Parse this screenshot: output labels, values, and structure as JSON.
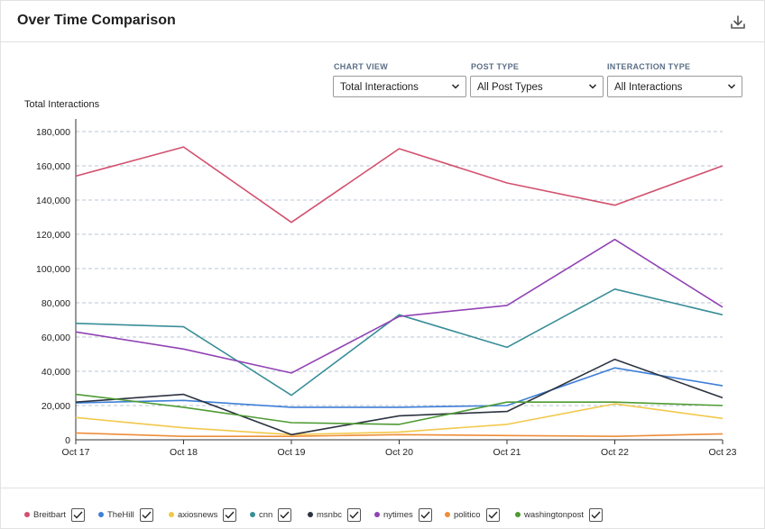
{
  "header": {
    "title": "Over Time Comparison",
    "download_icon": "download-icon"
  },
  "controls": [
    {
      "label": "CHART VIEW",
      "value": "Total Interactions"
    },
    {
      "label": "POST TYPE",
      "value": "All Post Types"
    },
    {
      "label": "INTERACTION TYPE",
      "value": "All Interactions"
    }
  ],
  "chart_data": {
    "type": "line",
    "title": "",
    "xlabel": "",
    "ylabel": "Total Interactions",
    "ylim": [
      0,
      180000
    ],
    "yticks": [
      0,
      20000,
      40000,
      60000,
      80000,
      100000,
      120000,
      140000,
      160000,
      180000
    ],
    "ytick_labels": [
      "0",
      "20,000",
      "40,000",
      "60,000",
      "80,000",
      "100,000",
      "120,000",
      "140,000",
      "160,000",
      "180,000"
    ],
    "categories": [
      "Oct 17",
      "Oct 18",
      "Oct 19",
      "Oct 20",
      "Oct 21",
      "Oct 22",
      "Oct 23"
    ],
    "grid": "horizontal-dashed",
    "legend_position": "bottom",
    "series": [
      {
        "name": "Breitbart",
        "color": "#d2506e",
        "values": [
          154000,
          171000,
          127000,
          170000,
          150000,
          137000,
          160000
        ]
      },
      {
        "name": "TheHill",
        "color": "#3f7fd8",
        "values": [
          21500,
          23000,
          19000,
          19000,
          20000,
          42000,
          31500
        ]
      },
      {
        "name": "axiosnews",
        "color": "#f2c84b",
        "values": [
          13000,
          7000,
          3000,
          4500,
          9000,
          21000,
          12500
        ]
      },
      {
        "name": "cnn",
        "color": "#3a8e98",
        "values": [
          68000,
          66000,
          26000,
          73000,
          54000,
          88000,
          73000
        ]
      },
      {
        "name": "msnbc",
        "color": "#2c3340",
        "values": [
          22000,
          26500,
          3000,
          14000,
          16500,
          47000,
          24500
        ]
      },
      {
        "name": "nytimes",
        "color": "#9143b4",
        "values": [
          63000,
          53000,
          39000,
          72000,
          78500,
          117000,
          77500
        ]
      },
      {
        "name": "politico",
        "color": "#ee8d3a",
        "values": [
          4000,
          2000,
          2000,
          3000,
          2500,
          2000,
          3500
        ]
      },
      {
        "name": "washingtonpost",
        "color": "#4e9b33",
        "values": [
          26500,
          19000,
          10000,
          9000,
          22000,
          22000,
          20000
        ]
      }
    ]
  },
  "legend": [
    {
      "name": "Breitbart",
      "color": "#d2506e",
      "checked": true
    },
    {
      "name": "TheHill",
      "color": "#3f7fd8",
      "checked": true
    },
    {
      "name": "axiosnews",
      "color": "#f2c84b",
      "checked": true
    },
    {
      "name": "cnn",
      "color": "#3a8e98",
      "checked": true
    },
    {
      "name": "msnbc",
      "color": "#2c3340",
      "checked": true
    },
    {
      "name": "nytimes",
      "color": "#9143b4",
      "checked": true
    },
    {
      "name": "politico",
      "color": "#ee8d3a",
      "checked": true
    },
    {
      "name": "washingtonpost",
      "color": "#4e9b33",
      "checked": true
    }
  ]
}
